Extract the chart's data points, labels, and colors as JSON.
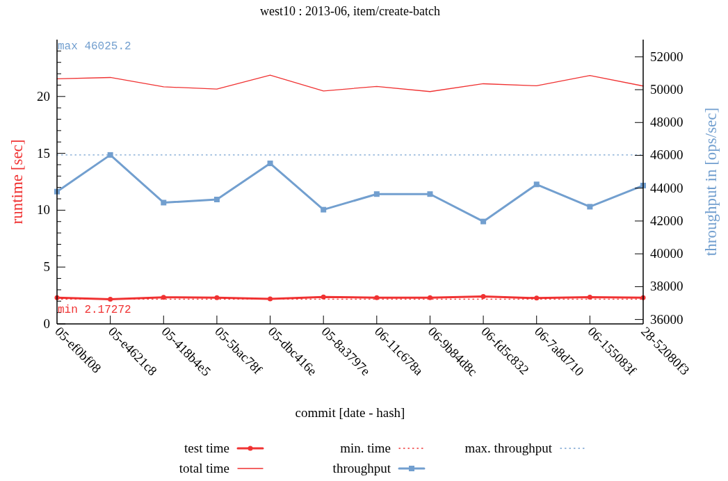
{
  "chart_data": {
    "type": "line",
    "title": "west10 : 2013-06, item/create-batch",
    "xlabel": "commit [date - hash]",
    "ylabel": "runtime [sec]",
    "y2label": "throughput in [ops/sec]",
    "categories": [
      "05-ef0bf08",
      "05-e4621c8",
      "05-418b4e5",
      "05-5bac78f",
      "05-dbc416e",
      "05-8a3797e",
      "06-11c678a",
      "06-9b84d8c",
      "06-fd5c832",
      "06-7a8d710",
      "06-155083f",
      "28-52080f3"
    ],
    "series": [
      {
        "name": "test time",
        "color": "#f03232",
        "marker": "circle",
        "line_style": "solid",
        "values": [
          2.3,
          2.17272,
          2.34,
          2.31,
          2.2,
          2.37,
          2.31,
          2.31,
          2.41,
          2.27,
          2.36,
          2.31
        ]
      },
      {
        "name": "total time",
        "color": "#f03232",
        "marker": "none",
        "line_style": "solid",
        "values": [
          21.55,
          21.67,
          20.85,
          20.65,
          21.87,
          20.49,
          20.88,
          20.43,
          21.12,
          20.94,
          21.84,
          20.92
        ]
      },
      {
        "name": "min. time",
        "color": "#f03232",
        "marker": "none",
        "line_style": "dotted",
        "values": [
          2.17272,
          2.17272,
          2.17272,
          2.17272,
          2.17272,
          2.17272,
          2.17272,
          2.17272,
          2.17272,
          2.17272,
          2.17272,
          2.17272
        ]
      },
      {
        "name": "throughput",
        "color": "#729fcf",
        "marker": "square",
        "line_style": "solid",
        "axis": "y2",
        "values": [
          43790,
          46025.2,
          43120,
          43310,
          45510,
          42690,
          43640,
          43640,
          41970,
          44230,
          42870,
          44160
        ]
      },
      {
        "name": "max. throughput",
        "color": "#729fcf",
        "marker": "none",
        "line_style": "dotted",
        "axis": "y2",
        "values": [
          46025.2,
          46025.2,
          46025.2,
          46025.2,
          46025.2,
          46025.2,
          46025.2,
          46025.2,
          46025.2,
          46025.2,
          46025.2,
          46025.2
        ]
      }
    ],
    "annotations": [
      "max 46025.2",
      "min 2.17272"
    ],
    "ylim": [
      0,
      25
    ],
    "yticks": [
      0,
      {
        "value": 1,
        "label": null
      },
      {
        "value": 2,
        "label": null
      },
      {
        "value": 3,
        "label": null
      },
      {
        "value": 4,
        "label": null
      },
      5,
      {
        "value": 6,
        "label": null
      },
      {
        "value": 7,
        "label": null
      },
      {
        "value": 8,
        "label": null
      },
      {
        "value": 9,
        "label": null
      },
      10,
      {
        "value": 11,
        "label": null
      },
      {
        "value": 12,
        "label": null
      },
      {
        "value": 13,
        "label": null
      },
      {
        "value": 14,
        "label": null
      },
      15,
      {
        "value": 16,
        "label": null
      },
      {
        "value": 17,
        "label": null
      },
      {
        "value": 18,
        "label": null
      },
      {
        "value": 19,
        "label": null
      },
      20,
      {
        "value": 21,
        "label": null
      },
      {
        "value": 22,
        "label": null
      },
      {
        "value": 23,
        "label": null
      },
      {
        "value": 24,
        "label": null
      }
    ],
    "y2lim": [
      35730,
      53050
    ],
    "y2ticks": [
      36000,
      38000,
      40000,
      42000,
      44000,
      46000,
      48000,
      50000,
      52000
    ],
    "grid": false,
    "legend": "bottom"
  }
}
